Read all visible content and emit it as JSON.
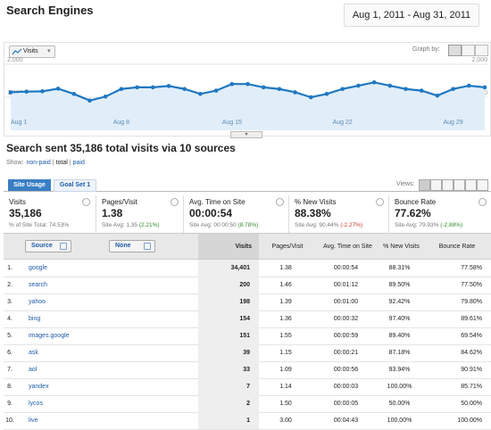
{
  "header": {
    "title": "Search Engines",
    "date_range": "Aug 1, 2011 - Aug 31, 2011"
  },
  "chart_data": {
    "type": "line",
    "graph_by": "Graph by:",
    "categories": [
      "Aug 1",
      null,
      null,
      null,
      null,
      null,
      null,
      "Aug 8",
      null,
      null,
      null,
      null,
      null,
      null,
      "Aug 15",
      null,
      null,
      null,
      null,
      null,
      null,
      "Aug 22",
      null,
      null,
      null,
      null,
      null,
      null,
      "Aug 29",
      null,
      null
    ],
    "series": [
      {
        "name": "Visits",
        "color": "#1f78c1",
        "values": [
          1150,
          1170,
          1180,
          1260,
          1100,
          900,
          1020,
          1250,
          1300,
          1300,
          1340,
          1250,
          1100,
          1200,
          1400,
          1400,
          1300,
          1250,
          1150,
          1000,
          1100,
          1250,
          1350,
          1450,
          1350,
          1250,
          1200,
          1050,
          1250,
          1350,
          1300
        ]
      }
    ],
    "ylim": [
      0,
      2000
    ],
    "yticks": [
      {
        "value": 1000,
        "label": "1,000"
      },
      {
        "value": 2000,
        "label": "2,000"
      }
    ],
    "grid": true,
    "area_color": "#e1eef9"
  },
  "headline": "Search sent 35,186 total visits via 10 sources",
  "show_filter": {
    "label": "Show:",
    "options": [
      "non-paid",
      "total",
      "paid"
    ],
    "separator": "|"
  },
  "tabs": [
    "Site Usage",
    "Goal Set 1"
  ],
  "views_label": "Views:",
  "summary": [
    {
      "label": "Visits",
      "value": "35,186",
      "note": "% of Site Total: 74.53%"
    },
    {
      "label": "Pages/Visit",
      "value": "1.38",
      "note": "Site Avg: 1.35",
      "delta": "(2.21%)",
      "delta_color": "#2e8b2e"
    },
    {
      "label": "Avg. Time on Site",
      "value": "00:00:54",
      "note": "Site Avg: 00:00:50",
      "delta": "(8.78%)",
      "delta_color": "#2e8b2e"
    },
    {
      "label": "% New Visits",
      "value": "88.38%",
      "note": "Site Avg: 90.44%",
      "delta": "(-2.27%)",
      "delta_color": "#c0392b"
    },
    {
      "label": "Bounce Rate",
      "value": "77.62%",
      "note": "Site Avg: 79.93%",
      "delta": "(-2.88%)",
      "delta_color": "#2e8b2e"
    }
  ],
  "table": {
    "dimension_filters": [
      "Source",
      "None"
    ],
    "columns": [
      "Visits",
      "Pages/Visit",
      "Avg. Time on Site",
      "% New Visits",
      "Bounce Rate"
    ],
    "rows": [
      [
        "1.",
        "google",
        "34,401",
        "1.38",
        "00:00:54",
        "88.31%",
        "77.58%"
      ],
      [
        "2.",
        "search",
        "200",
        "1.46",
        "00:01:12",
        "89.50%",
        "77.50%"
      ],
      [
        "3.",
        "yahoo",
        "198",
        "1.39",
        "00:01:00",
        "92.42%",
        "79.80%"
      ],
      [
        "4.",
        "bing",
        "154",
        "1.36",
        "00:00:32",
        "97.40%",
        "89.61%"
      ],
      [
        "5.",
        "images.google",
        "151",
        "1.55",
        "00:00:59",
        "89.40%",
        "69.54%"
      ],
      [
        "6.",
        "ask",
        "39",
        "1.15",
        "00:00:21",
        "87.18%",
        "84.62%"
      ],
      [
        "7.",
        "aol",
        "33",
        "1.09",
        "00:00:56",
        "93.94%",
        "90.91%"
      ],
      [
        "8.",
        "yandex",
        "7",
        "1.14",
        "00:00:03",
        "100.00%",
        "85.71%"
      ],
      [
        "9.",
        "lycos",
        "2",
        "1.50",
        "00:00:05",
        "50.00%",
        "50.00%"
      ],
      [
        "10.",
        "live",
        "1",
        "3.00",
        "00:04:43",
        "100.00%",
        "100.00%"
      ]
    ]
  }
}
